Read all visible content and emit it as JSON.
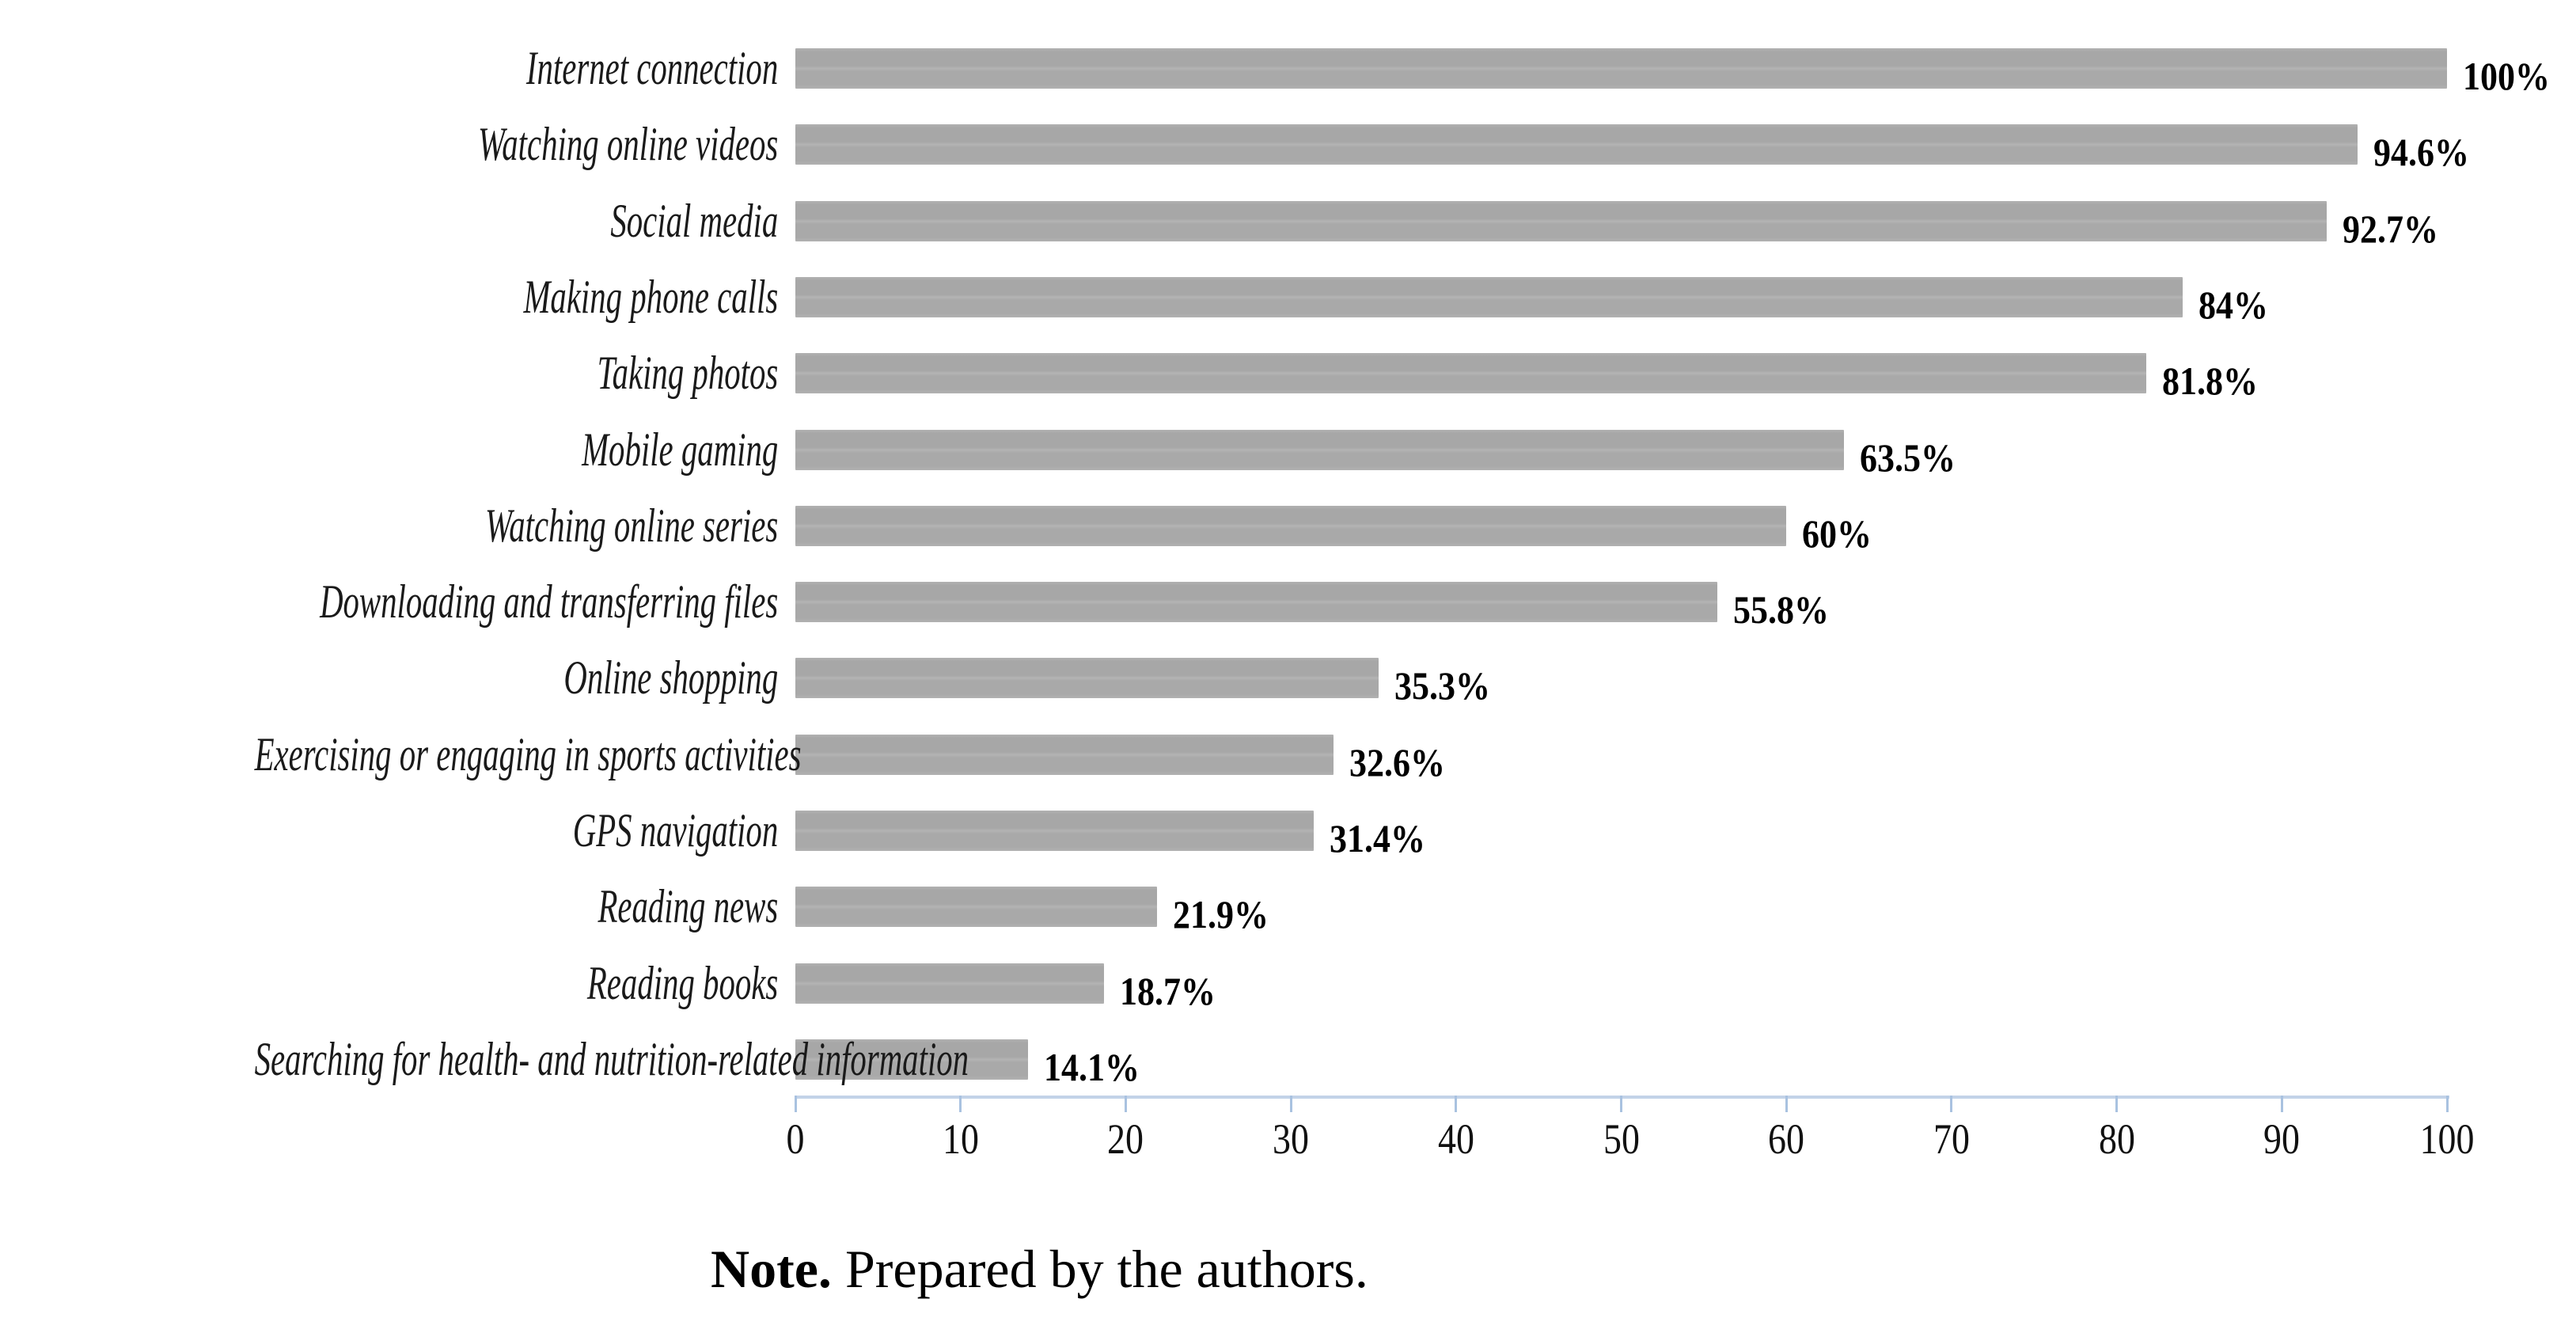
{
  "figure": {
    "note": {
      "label": "Note.",
      "text": " Prepared by the authors."
    }
  },
  "chart_data": {
    "type": "bar",
    "orientation": "horizontal",
    "title": "",
    "xlabel": "",
    "ylabel": "",
    "categories": [
      "Internet connection",
      "Watching online videos",
      "Social media",
      "Making phone calls",
      "Taking photos",
      "Mobile gaming",
      "Watching online series",
      "Downloading and transferring files",
      "Online shopping",
      "Exercising or engaging in sports activities",
      "GPS navigation",
      "Reading news",
      "Reading books",
      "Searching for health- and nutrition-related information"
    ],
    "values": [
      100,
      94.6,
      92.7,
      84,
      81.8,
      63.5,
      60,
      55.8,
      35.3,
      32.6,
      31.4,
      21.9,
      18.7,
      14.1
    ],
    "value_labels": [
      "100%",
      "94.6%",
      "92.7%",
      "84%",
      "81.8%",
      "63.5%",
      "60%",
      "55.8%",
      "35.3%",
      "32.6%",
      "31.4%",
      "21.9%",
      "18.7%",
      "14.1%"
    ],
    "xlim": [
      0,
      100
    ],
    "x_ticks": [
      0,
      10,
      20,
      30,
      40,
      50,
      60,
      70,
      80,
      90,
      100
    ],
    "grid": false,
    "legend": "none",
    "bar_color": "#a8a8a8",
    "axis_line_color": "#c3d3e8",
    "tick_color": "#a9c2e0",
    "label_color": "#1a1a1a"
  }
}
